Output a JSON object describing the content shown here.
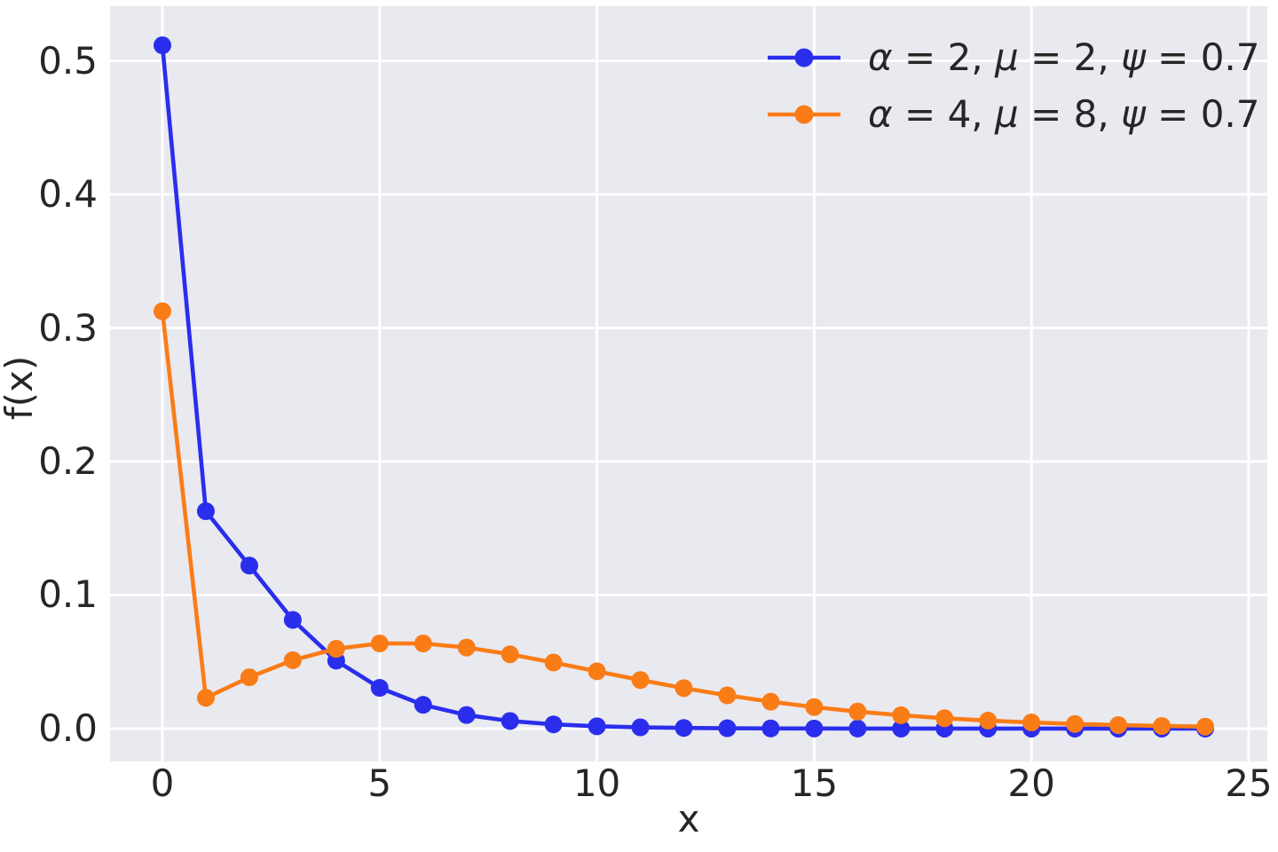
{
  "chart_data": {
    "type": "line",
    "title": "",
    "xlabel": "x",
    "ylabel": "f(x)",
    "x": [
      0,
      1,
      2,
      3,
      4,
      5,
      6,
      7,
      8,
      9,
      10,
      11,
      12,
      13,
      14,
      15,
      16,
      17,
      18,
      19,
      20,
      21,
      22,
      23,
      24
    ],
    "series": [
      {
        "name": "α = 2, μ = 2, ψ = 0.7",
        "color": "#2a2eec",
        "values": [
          0.51163,
          0.16279,
          0.12209,
          0.0814,
          0.05087,
          0.03052,
          0.01781,
          0.01017,
          0.00572,
          0.00318,
          0.00175,
          0.00095,
          0.00052,
          0.00028,
          0.00015,
          8e-05,
          4e-05,
          2e-05,
          1e-05,
          1e-05,
          0.0,
          0.0,
          0.0,
          0.0,
          0.0
        ]
      },
      {
        "name": "α = 4, μ = 8, ψ = 0.7",
        "color": "#fa7c17",
        "values": [
          0.31252,
          0.02306,
          0.03843,
          0.05124,
          0.05978,
          0.06377,
          0.06377,
          0.06073,
          0.05567,
          0.04948,
          0.04289,
          0.03639,
          0.03032,
          0.02488,
          0.02014,
          0.01611,
          0.01276,
          0.01,
          0.00778,
          0.00601,
          0.00461,
          0.00351,
          0.00266,
          0.002,
          0.0015
        ]
      }
    ],
    "x_ticks": [
      "0",
      "5",
      "10",
      "15",
      "20",
      "25"
    ],
    "y_ticks": [
      "0.0",
      "0.1",
      "0.2",
      "0.3",
      "0.4",
      "0.5"
    ],
    "xlim": [
      -1.205,
      25.43
    ],
    "ylim": [
      -0.0246,
      0.5409
    ],
    "grid": true,
    "legend_position": "upper right",
    "marker": "circle",
    "styles": {
      "plot_bg": "#e9e9f0",
      "grid_color": "#ffffff",
      "text_color": "#262626"
    }
  }
}
